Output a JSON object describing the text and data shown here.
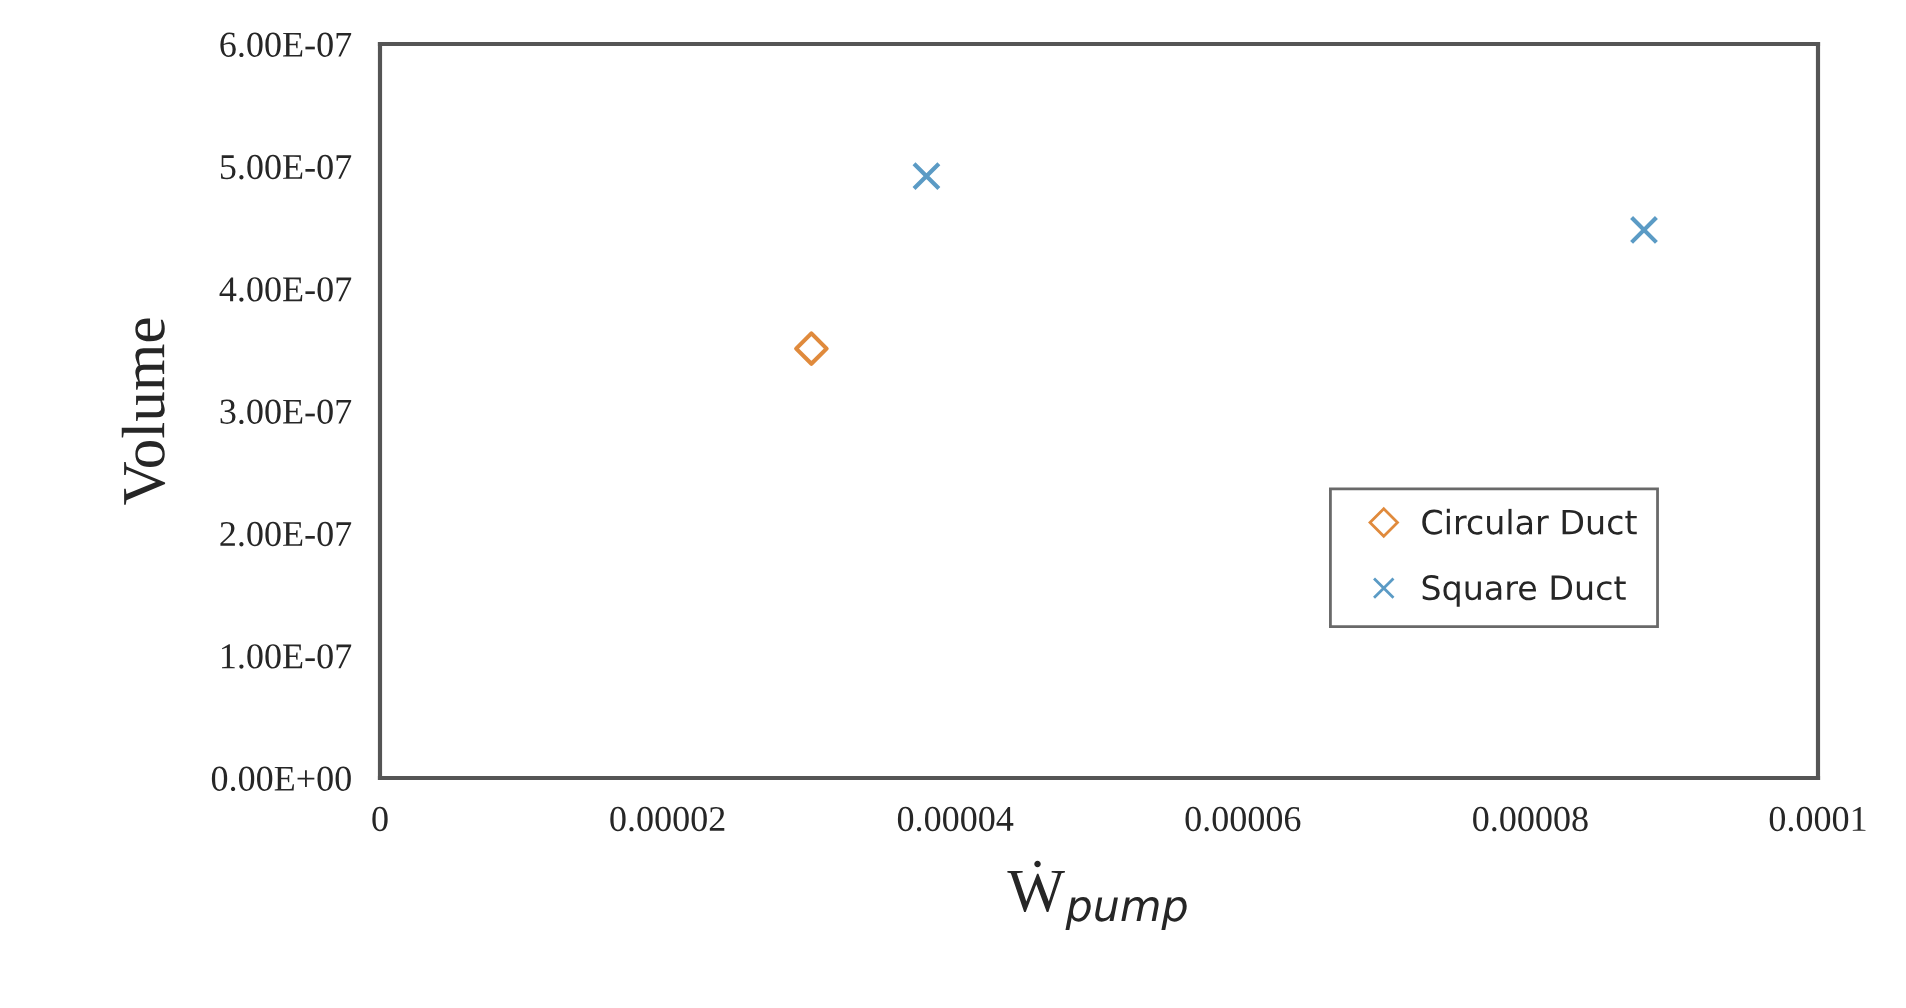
{
  "chart_data": {
    "type": "scatter",
    "xlabel": "Ẇ$_{pump}$",
    "ylabel": "Volume",
    "series": [
      {
        "name": "Circular Duct",
        "color": "#e08a3c",
        "marker": "diamond",
        "x": [
          3e-05
        ],
        "values": [
          3.51e-07
        ]
      },
      {
        "name": "Square Duct",
        "color": "#5b9bc5",
        "marker": "cross",
        "x": [
          3.8e-05,
          8.79e-05
        ],
        "values": [
          4.92e-07,
          4.48e-07
        ]
      }
    ],
    "xlim": [
      0,
      0.0001
    ],
    "ylim": [
      0,
      6e-07
    ],
    "xticks": [
      {
        "value": 0,
        "label": "0"
      },
      {
        "value": 2e-05,
        "label": "0.00002"
      },
      {
        "value": 4e-05,
        "label": "0.00004"
      },
      {
        "value": 6e-05,
        "label": "0.00006"
      },
      {
        "value": 8e-05,
        "label": "0.00008"
      },
      {
        "value": 0.0001,
        "label": "0.0001"
      }
    ],
    "yticks": [
      {
        "value": 0,
        "label": "0.00E+00"
      },
      {
        "value": 1e-07,
        "label": "1.00E-07"
      },
      {
        "value": 2e-07,
        "label": "2.00E-07"
      },
      {
        "value": 3e-07,
        "label": "3.00E-07"
      },
      {
        "value": 4e-07,
        "label": "4.00E-07"
      },
      {
        "value": 5e-07,
        "label": "5.00E-07"
      },
      {
        "value": 6e-07,
        "label": "6.00E-07"
      }
    ],
    "grid": false,
    "legend": "right"
  }
}
